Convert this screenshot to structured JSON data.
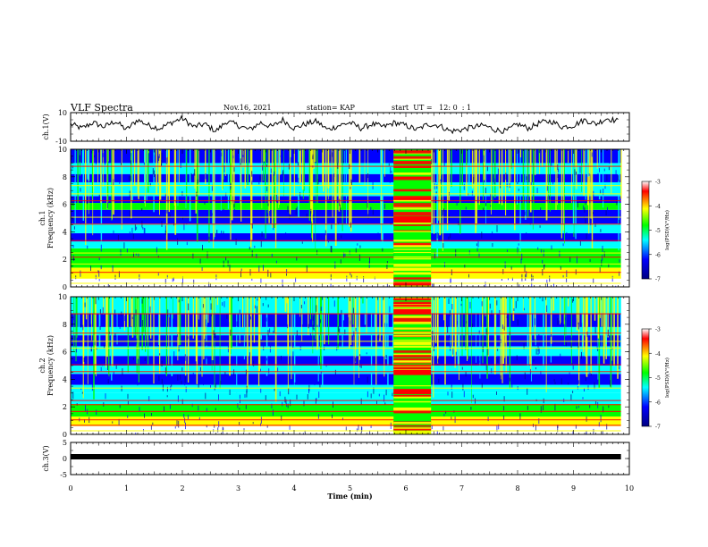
{
  "header": {
    "title": "VLF Spectra",
    "date": "Nov.16, 2021",
    "station": "station= KAP",
    "start": "start  UT =   12: 0  : 1"
  },
  "chart_data": [
    {
      "type": "line",
      "panel": "ch1-waveform",
      "ylabel": "ch.1(V)",
      "ylim": [
        -10,
        10
      ],
      "yticks": [
        "10",
        "-10"
      ],
      "x": [
        0.0,
        0.2,
        0.4,
        0.6,
        0.8,
        1.0,
        1.2,
        1.4,
        1.6,
        1.8,
        2.0,
        2.2,
        2.4,
        2.6,
        2.8,
        3.0,
        3.2,
        3.4,
        3.6,
        3.8,
        4.0,
        4.2,
        4.4,
        4.6,
        4.8,
        5.0,
        5.2,
        5.4,
        5.6,
        5.8,
        6.0,
        6.2,
        6.4,
        6.6,
        6.8,
        7.0,
        7.2,
        7.4,
        7.6,
        7.8,
        8.0,
        8.2,
        8.4,
        8.6,
        8.8,
        9.0,
        9.2,
        9.4,
        9.6,
        9.8
      ],
      "values": [
        2,
        -1,
        3,
        0,
        4,
        -2,
        5,
        1,
        -1,
        3,
        6,
        0,
        2,
        -3,
        4,
        1,
        -2,
        3,
        0,
        5,
        -1,
        2,
        4,
        -2,
        1,
        3,
        -1,
        2,
        0,
        3,
        1,
        -2,
        2,
        1,
        -3,
        -2,
        0,
        1,
        -2,
        -3,
        2,
        -1,
        3,
        4,
        0,
        1,
        5,
        2,
        6,
        4
      ]
    },
    {
      "type": "heatmap",
      "panel": "ch1-spectrogram",
      "ylabel": "ch.1\nFrequency (kHz)",
      "ylim": [
        0,
        10
      ],
      "yticks": [
        "0",
        "2",
        "4",
        "6",
        "8",
        "10"
      ],
      "colorbar": {
        "label": "log(PSD)(V²/Hz)",
        "range": [
          -7,
          -3
        ],
        "ticks": [
          "-3",
          "-4",
          "-5",
          "-6",
          "-7"
        ]
      }
    },
    {
      "type": "heatmap",
      "panel": "ch2-spectrogram",
      "ylabel": "ch.2\nFrequency (kHz)",
      "ylim": [
        0,
        10
      ],
      "yticks": [
        "0",
        "2",
        "4",
        "6",
        "8",
        "10"
      ],
      "colorbar": {
        "label": "log(PSD)(V²/Hz)",
        "range": [
          -7,
          -3
        ],
        "ticks": [
          "-3",
          "-4",
          "-5",
          "-6",
          "-7"
        ]
      }
    },
    {
      "type": "line",
      "panel": "ch3-waveform",
      "ylabel": "ch.3(V)",
      "ylim": [
        -5,
        5
      ],
      "yticks": [
        "5",
        "0",
        "-5"
      ],
      "x": [
        0,
        9.85
      ],
      "values": [
        0,
        0
      ]
    }
  ],
  "xaxis": {
    "label": "Time  (min)",
    "range": [
      0,
      10
    ],
    "ticks": [
      "0",
      "1",
      "2",
      "3",
      "4",
      "5",
      "6",
      "7",
      "8",
      "9",
      "10"
    ]
  },
  "colors": {
    "deep": "#00008b",
    "blue": "#0000ff",
    "cyan": "#00ffff",
    "green": "#00ff00",
    "yellow": "#ffff00",
    "red": "#ff0000"
  }
}
